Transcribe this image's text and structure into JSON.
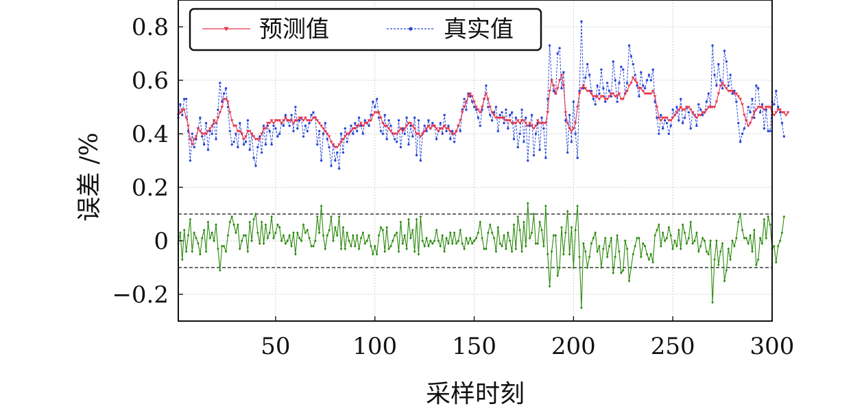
{
  "chart_data": {
    "type": "line",
    "xlabel": "采样时刻",
    "ylabel": "误差 /%",
    "xlim": [
      1,
      300
    ],
    "ylim": [
      -0.3,
      0.9
    ],
    "xticks": [
      50,
      100,
      150,
      200,
      250,
      300
    ],
    "xtick_labels": [
      "50",
      "100",
      "150",
      "200",
      "250",
      "300"
    ],
    "yticks": [
      -0.2,
      0,
      0.2,
      0.4,
      0.6,
      0.8
    ],
    "ytick_labels": [
      "−0.2",
      "0",
      "0.2",
      "0.4",
      "0.6",
      "0.8"
    ],
    "grid": true,
    "legend_position": "top-left",
    "reference_lines": [
      0.1,
      -0.1
    ],
    "series": [
      {
        "name": "预测值",
        "color": "#e8344a",
        "marker": "triangle-down",
        "style": "solid",
        "sample_every": 1,
        "values": [
          0.47,
          0.48,
          0.49,
          0.49,
          0.46,
          0.43,
          0.38,
          0.36,
          0.38,
          0.39,
          0.42,
          0.41,
          0.4,
          0.4,
          0.4,
          0.41,
          0.42,
          0.43,
          0.45,
          0.44,
          0.46,
          0.48,
          0.5,
          0.53,
          0.53,
          0.52,
          0.48,
          0.45,
          0.43,
          0.43,
          0.41,
          0.41,
          0.4,
          0.38,
          0.39,
          0.41,
          0.41,
          0.4,
          0.39,
          0.38,
          0.38,
          0.38,
          0.4,
          0.42,
          0.42,
          0.44,
          0.44,
          0.45,
          0.44,
          0.45,
          0.45,
          0.45,
          0.44,
          0.45,
          0.46,
          0.45,
          0.45,
          0.45,
          0.44,
          0.45,
          0.45,
          0.46,
          0.46,
          0.45,
          0.46,
          0.45,
          0.45,
          0.45,
          0.46,
          0.46,
          0.45,
          0.44,
          0.43,
          0.42,
          0.41,
          0.4,
          0.39,
          0.37,
          0.36,
          0.35,
          0.35,
          0.36,
          0.37,
          0.38,
          0.39,
          0.4,
          0.4,
          0.41,
          0.42,
          0.42,
          0.43,
          0.43,
          0.44,
          0.43,
          0.44,
          0.44,
          0.45,
          0.45,
          0.47,
          0.48,
          0.48,
          0.48,
          0.46,
          0.44,
          0.43,
          0.43,
          0.42,
          0.41,
          0.4,
          0.4,
          0.4,
          0.41,
          0.42,
          0.41,
          0.42,
          0.43,
          0.44,
          0.44,
          0.43,
          0.42,
          0.4,
          0.4,
          0.39,
          0.4,
          0.41,
          0.42,
          0.43,
          0.42,
          0.43,
          0.43,
          0.42,
          0.41,
          0.42,
          0.42,
          0.43,
          0.42,
          0.42,
          0.41,
          0.4,
          0.4,
          0.41,
          0.43,
          0.45,
          0.48,
          0.5,
          0.52,
          0.54,
          0.55,
          0.54,
          0.52,
          0.5,
          0.49,
          0.48,
          0.5,
          0.53,
          0.55,
          0.53,
          0.5,
          0.48,
          0.47,
          0.46,
          0.46,
          0.46,
          0.46,
          0.46,
          0.45,
          0.45,
          0.45,
          0.44,
          0.44,
          0.44,
          0.45,
          0.44,
          0.45,
          0.45,
          0.44,
          0.43,
          0.44,
          0.43,
          0.42,
          0.43,
          0.45,
          0.44,
          0.44,
          0.44,
          0.44,
          0.48,
          0.56,
          0.6,
          0.58,
          0.55,
          0.57,
          0.6,
          0.62,
          0.58,
          0.48,
          0.44,
          0.42,
          0.41,
          0.42,
          0.44,
          0.5,
          0.55,
          0.57,
          0.58,
          0.57,
          0.56,
          0.56,
          0.55,
          0.54,
          0.54,
          0.54,
          0.53,
          0.54,
          0.54,
          0.53,
          0.53,
          0.54,
          0.55,
          0.55,
          0.54,
          0.54,
          0.55,
          0.53,
          0.53,
          0.55,
          0.56,
          0.58,
          0.59,
          0.61,
          0.6,
          0.59,
          0.57,
          0.57,
          0.56,
          0.55,
          0.55,
          0.55,
          0.55,
          0.56,
          0.54,
          0.5,
          0.46,
          0.45,
          0.46,
          0.46,
          0.46,
          0.45,
          0.45,
          0.46,
          0.47,
          0.48,
          0.49,
          0.5,
          0.49,
          0.49,
          0.5,
          0.5,
          0.49,
          0.48,
          0.47,
          0.46,
          0.47,
          0.47,
          0.48,
          0.48,
          0.49,
          0.5,
          0.5,
          0.5,
          0.5,
          0.52,
          0.55,
          0.58,
          0.59,
          0.58,
          0.57,
          0.56,
          0.56,
          0.56,
          0.55,
          0.55,
          0.54,
          0.53,
          0.51,
          0.47,
          0.45,
          0.43,
          0.44,
          0.46,
          0.48,
          0.49,
          0.5,
          0.5,
          0.5,
          0.49,
          0.5,
          0.5,
          0.5,
          0.48,
          0.47,
          0.48,
          0.49,
          0.49,
          0.48,
          0.48,
          0.47,
          0.48
        ]
      },
      {
        "name": "真实值",
        "color": "#2445d9",
        "marker": "circle",
        "style": "dashed",
        "sample_every": 1,
        "values": [
          0.46,
          0.51,
          0.47,
          0.53,
          0.53,
          0.41,
          0.3,
          0.4,
          0.35,
          0.38,
          0.42,
          0.46,
          0.39,
          0.36,
          0.44,
          0.34,
          0.41,
          0.4,
          0.45,
          0.38,
          0.49,
          0.59,
          0.52,
          0.55,
          0.57,
          0.5,
          0.41,
          0.36,
          0.37,
          0.4,
          0.35,
          0.44,
          0.4,
          0.36,
          0.37,
          0.45,
          0.34,
          0.4,
          0.31,
          0.28,
          0.35,
          0.39,
          0.33,
          0.43,
          0.36,
          0.43,
          0.41,
          0.36,
          0.43,
          0.42,
          0.39,
          0.4,
          0.44,
          0.43,
          0.47,
          0.45,
          0.43,
          0.47,
          0.41,
          0.5,
          0.42,
          0.45,
          0.46,
          0.39,
          0.43,
          0.41,
          0.44,
          0.47,
          0.48,
          0.46,
          0.36,
          0.41,
          0.3,
          0.4,
          0.44,
          0.38,
          0.35,
          0.28,
          0.36,
          0.3,
          0.33,
          0.27,
          0.4,
          0.33,
          0.42,
          0.37,
          0.4,
          0.43,
          0.4,
          0.44,
          0.41,
          0.46,
          0.43,
          0.4,
          0.45,
          0.44,
          0.43,
          0.47,
          0.52,
          0.5,
          0.53,
          0.46,
          0.41,
          0.4,
          0.47,
          0.38,
          0.45,
          0.43,
          0.4,
          0.38,
          0.37,
          0.45,
          0.35,
          0.42,
          0.4,
          0.46,
          0.36,
          0.43,
          0.39,
          0.46,
          0.32,
          0.45,
          0.3,
          0.4,
          0.43,
          0.41,
          0.45,
          0.42,
          0.44,
          0.43,
          0.38,
          0.41,
          0.44,
          0.4,
          0.47,
          0.41,
          0.43,
          0.38,
          0.41,
          0.37,
          0.41,
          0.43,
          0.41,
          0.49,
          0.53,
          0.49,
          0.55,
          0.54,
          0.52,
          0.5,
          0.49,
          0.46,
          0.43,
          0.49,
          0.53,
          0.58,
          0.5,
          0.47,
          0.45,
          0.48,
          0.5,
          0.41,
          0.47,
          0.48,
          0.44,
          0.49,
          0.42,
          0.47,
          0.48,
          0.38,
          0.46,
          0.35,
          0.4,
          0.49,
          0.37,
          0.46,
          0.3,
          0.43,
          0.47,
          0.32,
          0.4,
          0.44,
          0.34,
          0.46,
          0.42,
          0.31,
          0.53,
          0.73,
          0.6,
          0.56,
          0.55,
          0.7,
          0.72,
          0.57,
          0.63,
          0.45,
          0.33,
          0.47,
          0.37,
          0.52,
          0.4,
          0.31,
          0.56,
          0.82,
          0.57,
          0.61,
          0.66,
          0.62,
          0.56,
          0.53,
          0.51,
          0.58,
          0.55,
          0.64,
          0.57,
          0.52,
          0.59,
          0.56,
          0.54,
          0.67,
          0.6,
          0.52,
          0.59,
          0.65,
          0.64,
          0.55,
          0.59,
          0.73,
          0.69,
          0.66,
          0.62,
          0.58,
          0.54,
          0.63,
          0.58,
          0.57,
          0.6,
          0.62,
          0.6,
          0.64,
          0.52,
          0.46,
          0.4,
          0.47,
          0.42,
          0.45,
          0.44,
          0.4,
          0.43,
          0.49,
          0.47,
          0.5,
          0.45,
          0.53,
          0.44,
          0.46,
          0.5,
          0.48,
          0.42,
          0.48,
          0.47,
          0.43,
          0.51,
          0.49,
          0.47,
          0.48,
          0.52,
          0.55,
          0.5,
          0.73,
          0.62,
          0.58,
          0.66,
          0.6,
          0.57,
          0.71,
          0.67,
          0.58,
          0.62,
          0.55,
          0.56,
          0.52,
          0.44,
          0.37,
          0.4,
          0.42,
          0.45,
          0.5,
          0.48,
          0.53,
          0.46,
          0.58,
          0.57,
          0.48,
          0.51,
          0.42,
          0.49,
          0.41,
          0.41,
          0.52,
          0.51,
          0.56,
          0.5,
          0.48,
          0.44,
          0.39
        ]
      },
      {
        "name": "",
        "color": "#2a8a0c",
        "marker": "diamond",
        "style": "solid",
        "sample_every": 1,
        "values": [
          -0.01,
          0.03,
          -0.07,
          0.04,
          -0.04,
          0.02,
          0.08,
          -0.04,
          0.03,
          0.01,
          -0.01,
          -0.05,
          0.01,
          0.04,
          -0.04,
          0.07,
          0.01,
          0.03,
          0.0,
          0.06,
          -0.03,
          -0.11,
          -0.02,
          -0.02,
          -0.04,
          0.02,
          0.07,
          0.09,
          0.06,
          0.03,
          0.06,
          -0.03,
          0.0,
          0.02,
          0.02,
          -0.04,
          0.07,
          0.0,
          0.08,
          0.1,
          0.03,
          -0.01,
          0.07,
          -0.01,
          0.06,
          0.01,
          0.03,
          0.09,
          0.01,
          0.03,
          0.06,
          0.05,
          0.0,
          0.02,
          -0.01,
          0.0,
          0.02,
          -0.02,
          0.03,
          -0.05,
          0.03,
          0.01,
          0.0,
          0.06,
          0.03,
          0.04,
          0.01,
          -0.02,
          -0.02,
          0.0,
          0.09,
          0.03,
          0.13,
          0.02,
          -0.03,
          0.02,
          0.04,
          0.09,
          0.0,
          0.05,
          0.02,
          0.09,
          -0.03,
          0.05,
          -0.03,
          0.03,
          0.0,
          -0.02,
          0.02,
          -0.02,
          0.02,
          -0.03,
          0.01,
          0.03,
          -0.01,
          0.0,
          0.02,
          -0.02,
          -0.05,
          -0.02,
          -0.05,
          0.02,
          0.05,
          0.04,
          -0.04,
          0.05,
          -0.03,
          -0.02,
          0.0,
          0.02,
          0.03,
          -0.04,
          0.07,
          -0.01,
          0.02,
          -0.03,
          0.08,
          0.01,
          0.04,
          -0.04,
          0.08,
          -0.05,
          0.09,
          0.0,
          -0.02,
          0.01,
          -0.02,
          0.0,
          -0.01,
          0.0,
          0.04,
          0.0,
          -0.02,
          0.02,
          -0.04,
          0.01,
          -0.01,
          0.03,
          -0.01,
          0.03,
          -0.01,
          0.0,
          0.04,
          -0.01,
          -0.03,
          0.01,
          -0.01,
          0.01,
          -0.01,
          0.0,
          0.01,
          0.03,
          0.07,
          0.01,
          -0.03,
          -0.03,
          0.03,
          0.06,
          0.03,
          0.01,
          -0.04,
          0.05,
          -0.01,
          -0.02,
          0.02,
          -0.03,
          0.03,
          0.0,
          -0.04,
          0.06,
          -0.03,
          0.09,
          0.04,
          -0.04,
          0.07,
          -0.02,
          0.14,
          0.01,
          0.03,
          0.1,
          -0.01,
          -0.01,
          0.07,
          0.04,
          -0.02,
          0.13,
          -0.05,
          -0.17,
          -0.04,
          0.02,
          0.02,
          -0.13,
          -0.1,
          0.05,
          -0.05,
          0.03,
          0.11,
          -0.05,
          0.05,
          -0.1,
          0.04,
          0.13,
          -0.06,
          -0.25,
          -0.01,
          -0.04,
          -0.1,
          -0.06,
          -0.01,
          0.01,
          0.03,
          -0.04,
          -0.02,
          -0.1,
          -0.03,
          0.01,
          -0.06,
          -0.02,
          0.01,
          -0.12,
          -0.06,
          0.02,
          -0.04,
          -0.12,
          -0.11,
          0.0,
          -0.03,
          -0.15,
          -0.1,
          -0.05,
          -0.02,
          0.01,
          0.01,
          -0.06,
          -0.01,
          -0.02,
          -0.05,
          -0.07,
          -0.05,
          -0.08,
          0.02,
          0.04,
          0.06,
          -0.02,
          0.03,
          0.0,
          0.01,
          0.05,
          0.02,
          -0.03,
          0.0,
          -0.02,
          0.04,
          -0.03,
          0.06,
          0.03,
          -0.01,
          0.01,
          0.07,
          -0.01,
          0.0,
          0.03,
          -0.04,
          -0.02,
          0.01,
          0.0,
          -0.04,
          -0.05,
          0.0,
          -0.23,
          -0.07,
          0.0,
          -0.09,
          -0.04,
          -0.01,
          -0.15,
          -0.11,
          -0.03,
          -0.07,
          0.0,
          -0.02,
          0.01,
          0.07,
          0.1,
          0.04,
          0.01,
          0.01,
          -0.01,
          0.02,
          -0.04,
          0.04,
          -0.09,
          -0.07,
          0.01,
          -0.01,
          0.08,
          0.01,
          0.09,
          0.06,
          -0.03,
          -0.02,
          -0.08,
          -0.02,
          0.0,
          0.03,
          0.09
        ]
      }
    ]
  }
}
